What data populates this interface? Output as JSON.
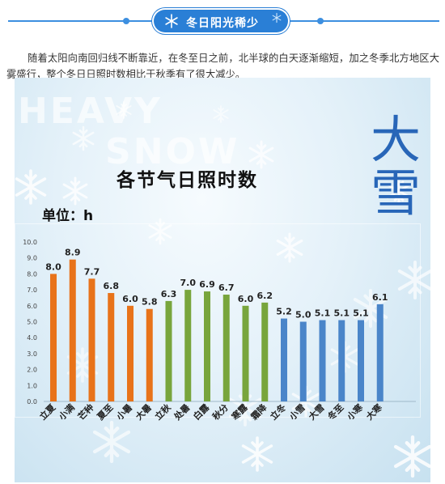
{
  "header": {
    "title": "冬日阳光稀少",
    "icon": "snowflake-icon",
    "color": "#2a7fd6"
  },
  "intro": "随着太阳向南回归线不断靠近，在冬至日之前，北半球的白天逐渐缩短，加之冬季北方地区大雾盛行，整个冬日日照时数相比于秋季有了很大减少。",
  "poster": {
    "bg_words": [
      "HEAVY",
      "SNOW"
    ],
    "big_chars": [
      "大",
      "雪"
    ]
  },
  "chart_data": {
    "type": "bar",
    "title": "各节气日照时数",
    "unit_label": "单位：h",
    "categories": [
      "立夏",
      "小满",
      "芒种",
      "夏至",
      "小暑",
      "大暑",
      "立秋",
      "处暑",
      "白露",
      "秋分",
      "寒露",
      "霜降",
      "立冬",
      "小雪",
      "大雪",
      "冬至",
      "小寒",
      "大寒"
    ],
    "values": [
      8.0,
      8.9,
      7.7,
      6.8,
      6.0,
      5.8,
      6.3,
      7.0,
      6.9,
      6.7,
      6.0,
      6.2,
      5.2,
      5.0,
      5.1,
      5.1,
      5.1,
      6.1
    ],
    "value_labels": [
      "8.0",
      "8.9",
      "7.7",
      "6.8",
      "6.0",
      "5.8",
      "6.3",
      "7.0",
      "6.9",
      "6.7",
      "6.0",
      "6.2",
      "5.2",
      "5.0",
      "5.1",
      "5.1",
      "5.1",
      "6.1"
    ],
    "groups": [
      {
        "season": "summer",
        "color": "#e8731a",
        "count": 6
      },
      {
        "season": "autumn",
        "color": "#78a53c",
        "count": 6
      },
      {
        "season": "winter",
        "color": "#4a85c9",
        "count": 6
      }
    ],
    "ylim": [
      0,
      10
    ],
    "yticks": [
      "0.0",
      "1.0",
      "2.0",
      "3.0",
      "4.0",
      "5.0",
      "6.0",
      "7.0",
      "8.0",
      "9.0",
      "10.0"
    ],
    "grid": false
  }
}
